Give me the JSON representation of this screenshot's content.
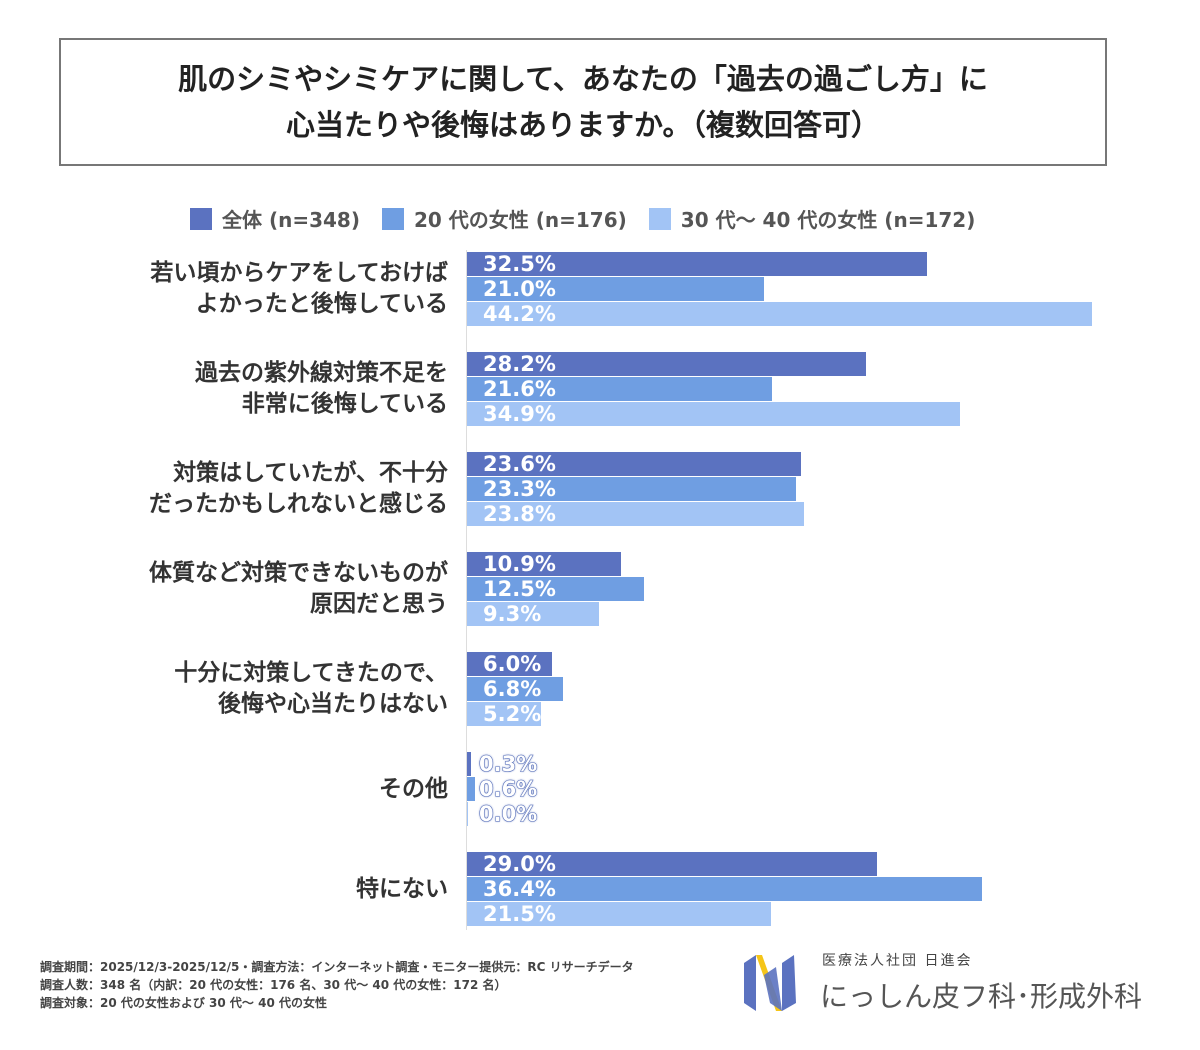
{
  "title": {
    "line1": "肌のシミやシミケアに関して、あなたの「過去の過ごし方」に",
    "line2": "心当たりや後悔はありますか。（複数回答可）"
  },
  "chart_data": {
    "type": "bar",
    "orientation": "horizontal",
    "title": "肌のシミやシミケアに関して、あなたの「過去の過ごし方」に心当たりや後悔はありますか。（複数回答可）",
    "categories": [
      "若い頃からケアをしておけば\nよかったと後悔している",
      "過去の紫外線対策不足を\n非常に後悔している",
      "対策はしていたが、不十分\nだったかもしれないと感じる",
      "体質など対策できないものが\n原因だと思う",
      "十分に対策してきたので、\n後悔や心当たりはない",
      "その他",
      "特にない"
    ],
    "series": [
      {
        "name": "全体 (n=348)",
        "color": "#5b72c0",
        "values": [
          32.5,
          28.2,
          23.6,
          10.9,
          6.0,
          0.3,
          29.0
        ]
      },
      {
        "name": "20 代の女性 (n=176)",
        "color": "#6f9ee2",
        "values": [
          21.0,
          21.6,
          23.3,
          12.5,
          6.8,
          0.6,
          36.4
        ]
      },
      {
        "name": "30 代～ 40 代の女性 (n=172)",
        "color": "#a2c4f5",
        "values": [
          44.2,
          34.9,
          23.8,
          9.3,
          5.2,
          0.0,
          21.5
        ]
      }
    ],
    "value_format": "%",
    "legend": "top",
    "grid": false
  },
  "footer": {
    "line1": "調査期間：2025/12/3-2025/12/5・調査方法：インターネット調査・モニター提供元：RC リサーチデータ",
    "line2": "調査人数：348 名（内訳：20 代の女性：176 名、30 代～ 40 代の女性：172 名）",
    "line3": "調査対象：20 代の女性および 30 代～ 40 代の女性"
  },
  "brand": {
    "org": "医療法人社団 日進会",
    "clinic": "にっしん皮フ科･形成外科"
  }
}
